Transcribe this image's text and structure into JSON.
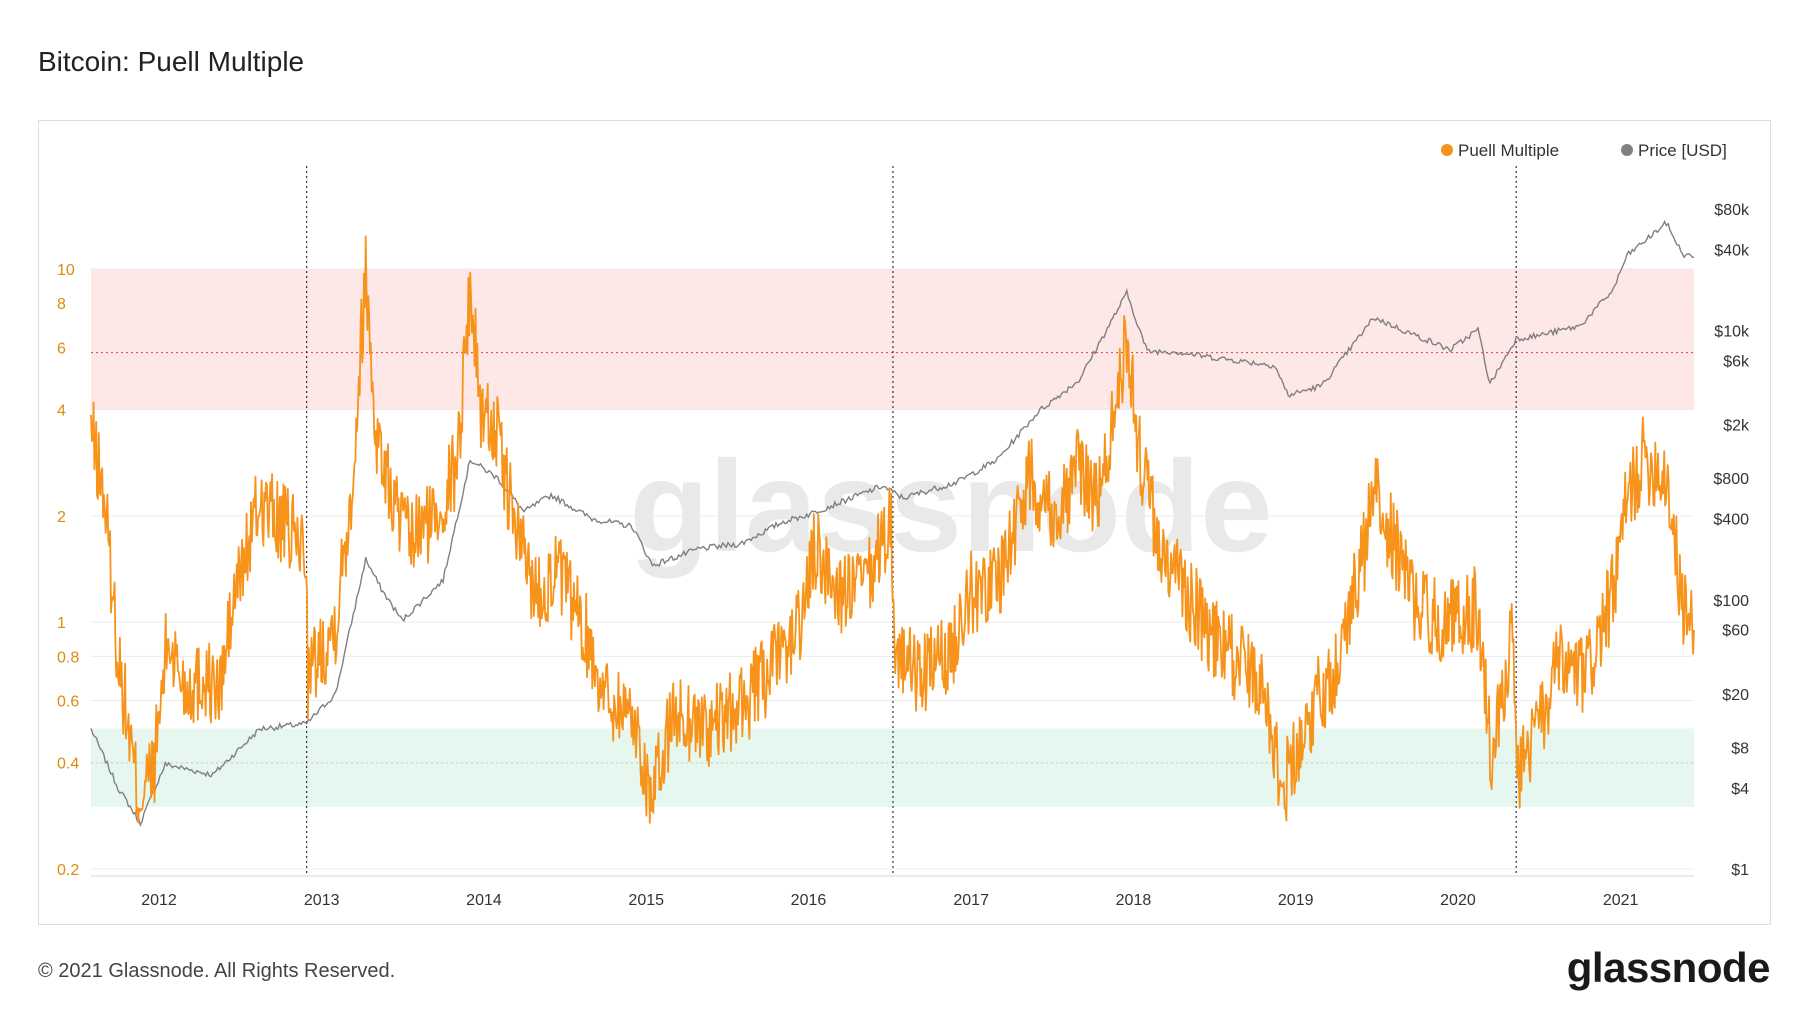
{
  "title": "Bitcoin: Puell Multiple",
  "footer": {
    "copyright": "© 2021 Glassnode. All Rights Reserved.",
    "logo": "glassnode"
  },
  "watermark": "glassnode",
  "colors": {
    "puell": "#f7931a",
    "price": "#808080",
    "upper_band": "#fde7e7",
    "lower_band": "#e6f7ef",
    "upper_line": "#e05555",
    "lower_line": "#4a9a6a",
    "halving": "#333333"
  },
  "chart_data": {
    "type": "line",
    "title": "Bitcoin: Puell Multiple",
    "legend": {
      "position": "top-right",
      "items": [
        {
          "name": "Puell Multiple",
          "color": "#f7931a"
        },
        {
          "name": "Price [USD]",
          "color": "#808080"
        }
      ]
    },
    "x_axis": {
      "type": "time",
      "range": [
        "2011-08-01",
        "2021-06-15"
      ],
      "tick_labels": [
        "2012",
        "2013",
        "2014",
        "2015",
        "2016",
        "2017",
        "2018",
        "2019",
        "2020",
        "2021"
      ]
    },
    "y_left": {
      "scale": "log",
      "range": [
        0.2,
        10
      ],
      "tick_values": [
        10,
        8,
        6,
        4,
        2,
        1,
        0.8,
        0.6,
        0.4,
        0.2
      ],
      "tick_labels": [
        "10",
        "8",
        "6",
        "4",
        "2",
        "1",
        "0.8",
        "0.6",
        "0.4",
        "0.2"
      ]
    },
    "y_right": {
      "scale": "log",
      "range": [
        1,
        80000
      ],
      "tick_values": [
        80000,
        40000,
        10000,
        6000,
        2000,
        800,
        400,
        100,
        60,
        20,
        8,
        4,
        1
      ],
      "tick_labels": [
        "$80k",
        "$40k",
        "$10k",
        "$6k",
        "$2k",
        "$800",
        "$400",
        "$100",
        "$60",
        "$20",
        "$8",
        "$4",
        "$1"
      ]
    },
    "bands": [
      {
        "name": "upper",
        "from": 4,
        "to": 10,
        "line": 5.8
      },
      {
        "name": "lower",
        "from": 0.3,
        "to": 0.5,
        "line": 0.4
      }
    ],
    "halvings": [
      "2012-11-28",
      "2016-07-09",
      "2020-05-11"
    ],
    "series": [
      {
        "name": "Puell Multiple",
        "axis": "left",
        "points": [
          [
            "2011-08-01",
            3.5
          ],
          [
            "2011-09-01",
            2.2
          ],
          [
            "2011-10-01",
            0.8
          ],
          [
            "2011-11-15",
            0.32
          ],
          [
            "2011-12-20",
            0.38
          ],
          [
            "2012-01-20",
            0.9
          ],
          [
            "2012-03-01",
            0.65
          ],
          [
            "2012-04-15",
            0.7
          ],
          [
            "2012-05-15",
            0.62
          ],
          [
            "2012-06-20",
            1.2
          ],
          [
            "2012-08-15",
            2.2
          ],
          [
            "2012-10-01",
            1.9
          ],
          [
            "2012-11-27",
            1.6
          ],
          [
            "2012-12-01",
            0.7
          ],
          [
            "2013-02-01",
            1.0
          ],
          [
            "2013-03-10",
            2.4
          ],
          [
            "2013-04-10",
            10.0
          ],
          [
            "2013-05-01",
            3.6
          ],
          [
            "2013-06-01",
            2.4
          ],
          [
            "2013-07-15",
            1.7
          ],
          [
            "2013-09-15",
            2.0
          ],
          [
            "2013-11-01",
            2.8
          ],
          [
            "2013-12-01",
            9.0
          ],
          [
            "2013-12-25",
            4.0
          ],
          [
            "2014-01-25",
            3.6
          ],
          [
            "2014-03-15",
            1.8
          ],
          [
            "2014-05-01",
            1.2
          ],
          [
            "2014-06-15",
            1.4
          ],
          [
            "2014-08-15",
            0.95
          ],
          [
            "2014-10-01",
            0.62
          ],
          [
            "2014-12-01",
            0.55
          ],
          [
            "2015-01-15",
            0.31
          ],
          [
            "2015-03-01",
            0.55
          ],
          [
            "2015-06-01",
            0.5
          ],
          [
            "2015-08-15",
            0.6
          ],
          [
            "2015-11-01",
            0.8
          ],
          [
            "2015-12-15",
            1.0
          ],
          [
            "2016-01-15",
            1.6
          ],
          [
            "2016-03-15",
            1.2
          ],
          [
            "2016-05-15",
            1.3
          ],
          [
            "2016-07-05",
            2.0
          ],
          [
            "2016-07-12",
            0.85
          ],
          [
            "2016-09-01",
            0.7
          ],
          [
            "2016-11-15",
            0.8
          ],
          [
            "2016-12-20",
            1.2
          ],
          [
            "2017-03-01",
            1.3
          ],
          [
            "2017-05-15",
            2.6
          ],
          [
            "2017-07-15",
            2.0
          ],
          [
            "2017-09-01",
            2.8
          ],
          [
            "2017-10-15",
            2.2
          ],
          [
            "2017-12-17",
            6.3
          ],
          [
            "2018-01-15",
            3.0
          ],
          [
            "2018-03-01",
            1.6
          ],
          [
            "2018-05-01",
            1.2
          ],
          [
            "2018-07-01",
            0.9
          ],
          [
            "2018-09-01",
            0.75
          ],
          [
            "2018-10-20",
            0.7
          ],
          [
            "2018-12-01",
            0.33
          ],
          [
            "2019-02-01",
            0.55
          ],
          [
            "2019-04-01",
            0.75
          ],
          [
            "2019-06-01",
            1.5
          ],
          [
            "2019-06-26",
            2.4
          ],
          [
            "2019-08-15",
            1.6
          ],
          [
            "2019-10-01",
            1.1
          ],
          [
            "2019-12-01",
            1.0
          ],
          [
            "2020-02-15",
            1.1
          ],
          [
            "2020-03-15",
            0.42
          ],
          [
            "2020-05-01",
            0.9
          ],
          [
            "2020-05-15",
            0.38
          ],
          [
            "2020-07-01",
            0.5
          ],
          [
            "2020-08-15",
            0.75
          ],
          [
            "2020-10-15",
            0.7
          ],
          [
            "2020-12-15",
            1.2
          ],
          [
            "2021-01-15",
            2.2
          ],
          [
            "2021-02-20",
            2.9
          ],
          [
            "2021-04-15",
            2.6
          ],
          [
            "2021-05-20",
            1.1
          ],
          [
            "2021-06-15",
            0.95
          ]
        ]
      },
      {
        "name": "Price [USD]",
        "axis": "right",
        "points": [
          [
            "2011-08-01",
            11
          ],
          [
            "2011-10-01",
            4
          ],
          [
            "2011-11-20",
            2.2
          ],
          [
            "2012-01-15",
            6
          ],
          [
            "2012-05-01",
            5
          ],
          [
            "2012-08-15",
            11
          ],
          [
            "2012-11-28",
            12
          ],
          [
            "2013-02-01",
            20
          ],
          [
            "2013-04-10",
            200
          ],
          [
            "2013-05-15",
            120
          ],
          [
            "2013-07-01",
            70
          ],
          [
            "2013-10-01",
            140
          ],
          [
            "2013-12-01",
            1100
          ],
          [
            "2014-02-01",
            800
          ],
          [
            "2014-04-01",
            450
          ],
          [
            "2014-06-01",
            600
          ],
          [
            "2014-09-01",
            400
          ],
          [
            "2014-12-01",
            350
          ],
          [
            "2015-01-15",
            180
          ],
          [
            "2015-05-01",
            240
          ],
          [
            "2015-08-01",
            260
          ],
          [
            "2015-11-05",
            380
          ],
          [
            "2016-01-01",
            430
          ],
          [
            "2016-06-15",
            700
          ],
          [
            "2016-08-01",
            570
          ],
          [
            "2016-12-01",
            750
          ],
          [
            "2017-03-01",
            1100
          ],
          [
            "2017-06-01",
            2500
          ],
          [
            "2017-09-01",
            4300
          ],
          [
            "2017-12-17",
            19000
          ],
          [
            "2018-02-01",
            7000
          ],
          [
            "2018-04-01",
            7000
          ],
          [
            "2018-07-01",
            6300
          ],
          [
            "2018-11-15",
            5500
          ],
          [
            "2018-12-15",
            3300
          ],
          [
            "2019-03-01",
            3900
          ],
          [
            "2019-06-26",
            12500
          ],
          [
            "2019-09-01",
            10000
          ],
          [
            "2019-12-15",
            7200
          ],
          [
            "2020-02-15",
            10200
          ],
          [
            "2020-03-13",
            4000
          ],
          [
            "2020-05-11",
            8700
          ],
          [
            "2020-07-01",
            9200
          ],
          [
            "2020-10-01",
            10800
          ],
          [
            "2020-12-15",
            20000
          ],
          [
            "2021-01-15",
            36000
          ],
          [
            "2021-04-14",
            63000
          ],
          [
            "2021-05-20",
            37000
          ],
          [
            "2021-06-15",
            35000
          ]
        ]
      }
    ]
  }
}
